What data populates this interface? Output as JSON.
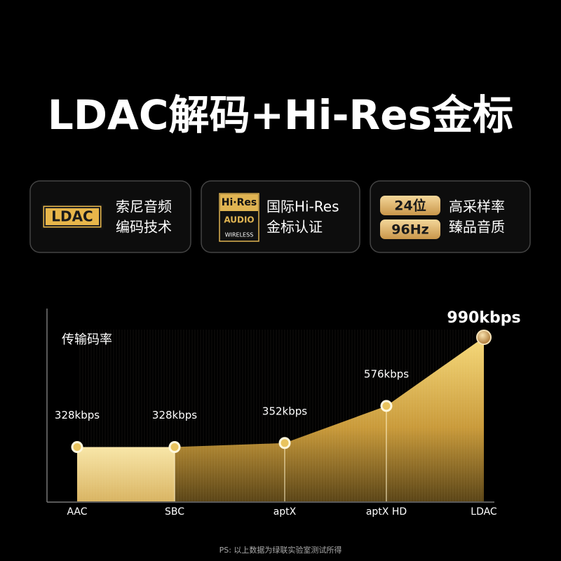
{
  "header": {
    "title": "LDAC解码+Hi-Res金标"
  },
  "features": [
    {
      "logo": "LDAC",
      "lines": [
        "索尼音频",
        "编码技术"
      ]
    },
    {
      "logo_lines": [
        "Hi·Res",
        "AUDIO",
        "WIRELESS"
      ],
      "lines": [
        "国际Hi-Res",
        "金标认证"
      ]
    },
    {
      "badges": [
        "24位",
        "96Hz"
      ],
      "lines": [
        "高采样率",
        "臻品音质"
      ]
    }
  ],
  "chart_data": {
    "type": "area",
    "y_label": "传输码率",
    "categories": [
      "AAC",
      "SBC",
      "aptX",
      "aptX HD",
      "LDAC"
    ],
    "values": [
      328,
      328,
      352,
      576,
      990
    ],
    "value_labels": [
      "328kbps",
      "328kbps",
      "352kbps",
      "576kbps",
      "990kbps"
    ]
  },
  "footnote": "PS: 以上数据为绿联实验室测试所得"
}
